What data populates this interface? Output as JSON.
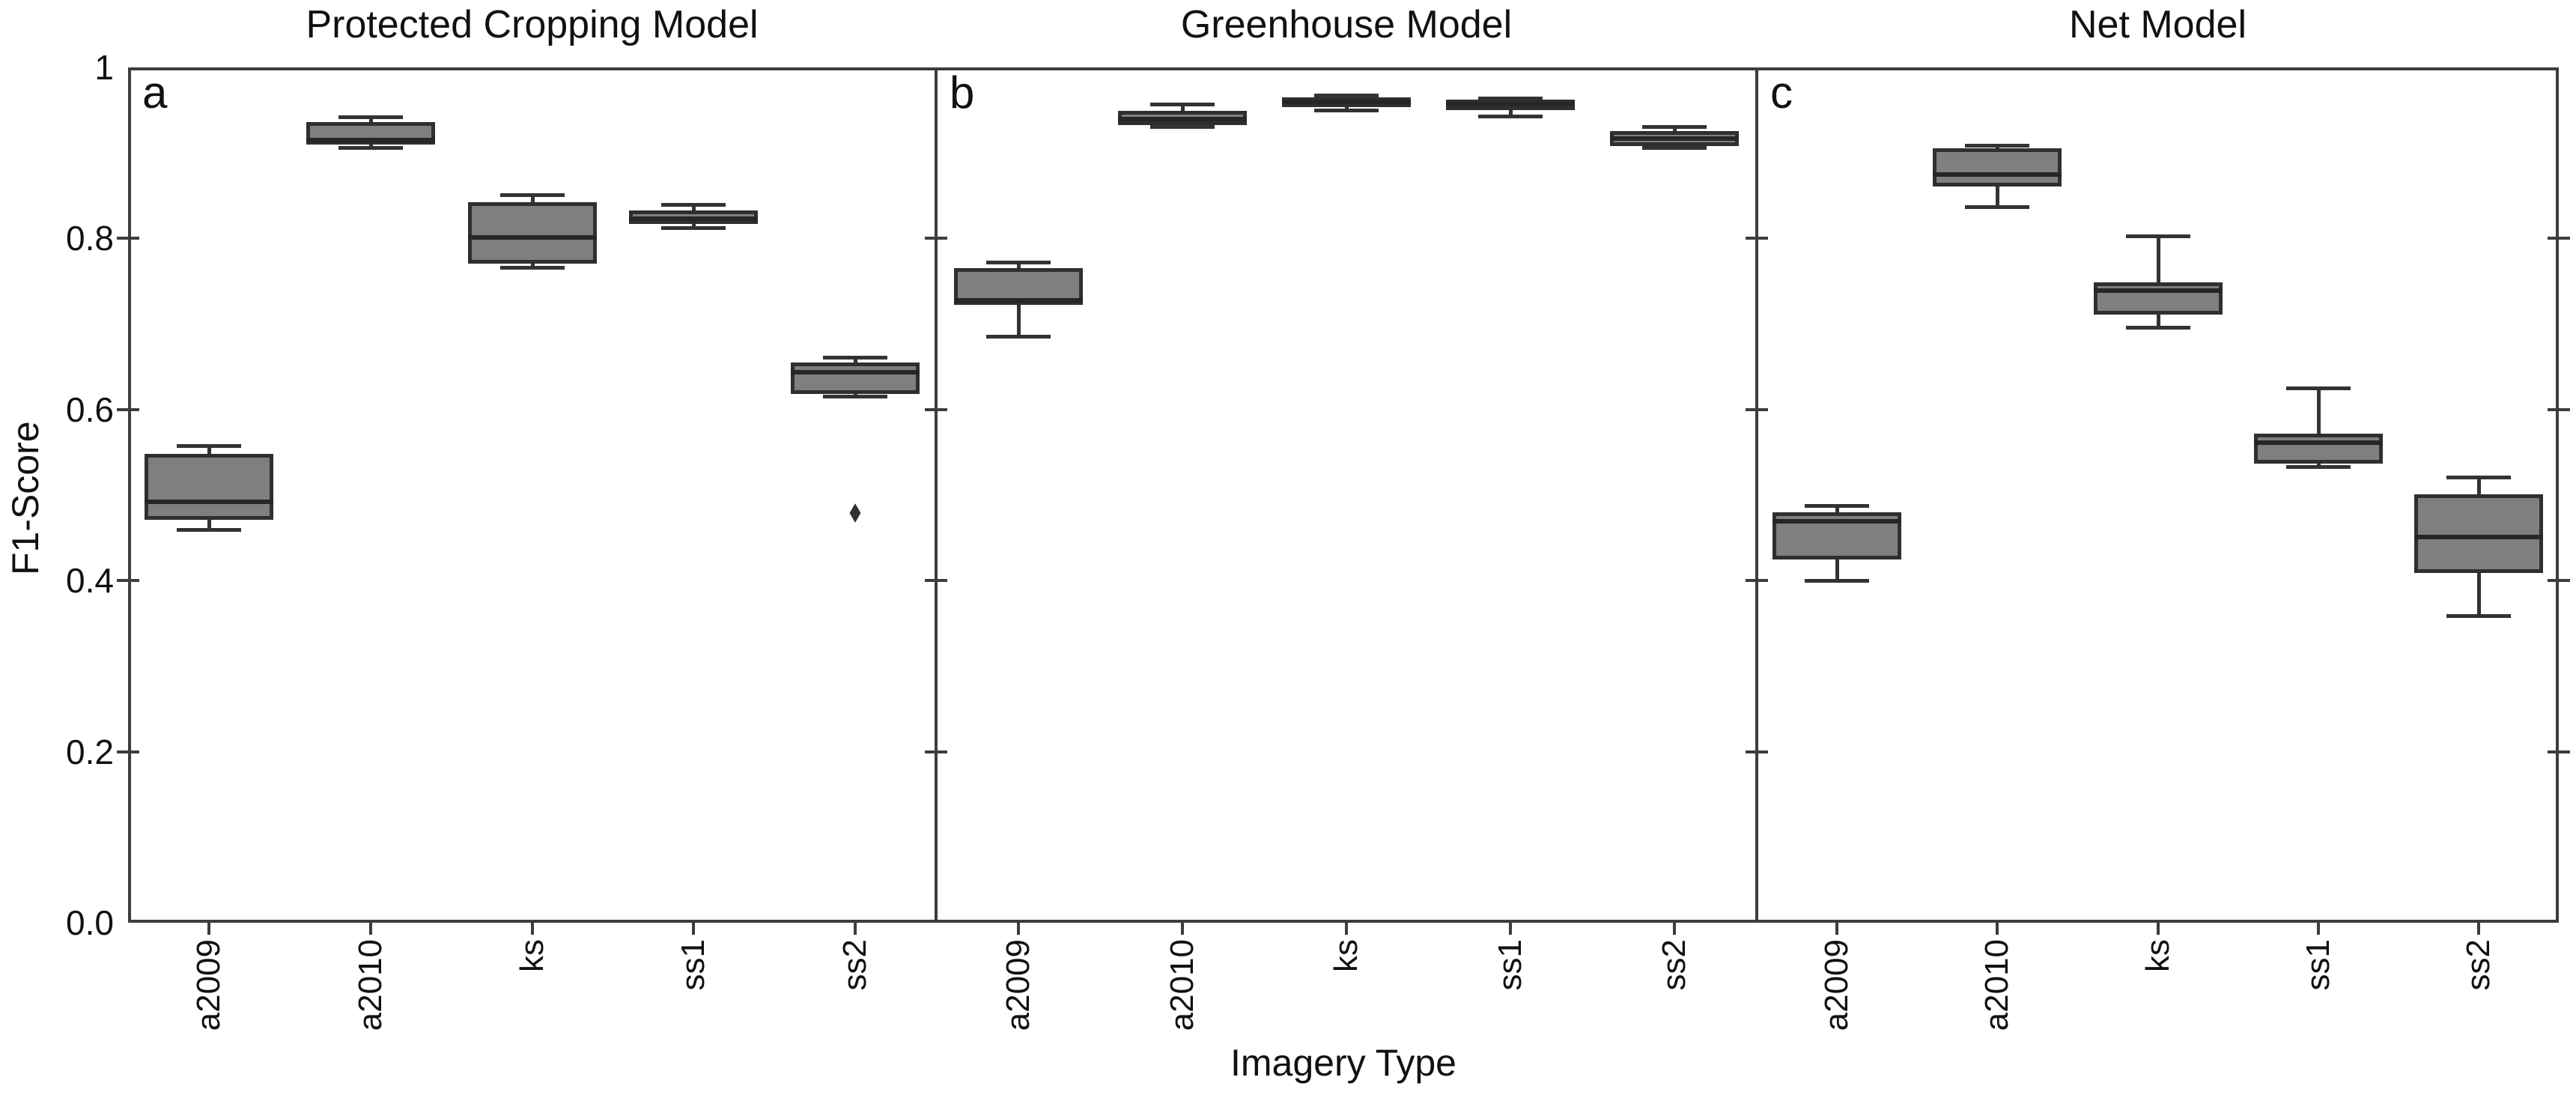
{
  "chart_data": {
    "type": "boxplot",
    "xlabel": "Imagery Type",
    "ylabel": "F1-Score",
    "ylim": [
      0.0,
      1.0
    ],
    "yticks": [
      0.0,
      0.2,
      0.4,
      0.6,
      0.8,
      1.0
    ],
    "ytick_labels": [
      "0.0",
      "0.2",
      "0.4",
      "0.6",
      "0.8",
      "1"
    ],
    "categories": [
      "a2009",
      "a2010",
      "ks",
      "ss1",
      "ss2"
    ],
    "grid": false,
    "legend": false,
    "box_fill_color": "#7f7f7f",
    "box_edge_color": "#2f2f2f",
    "panels": [
      {
        "label": "a",
        "title": "Protected Cropping Model",
        "boxes": [
          {
            "category": "a2009",
            "whislo": 0.46,
            "q1": 0.471,
            "med": 0.492,
            "q3": 0.548,
            "whishi": 0.558,
            "fliers": []
          },
          {
            "category": "a2010",
            "whislo": 0.906,
            "q1": 0.91,
            "med": 0.915,
            "q3": 0.936,
            "whishi": 0.942,
            "fliers": []
          },
          {
            "category": "ks",
            "whislo": 0.766,
            "q1": 0.771,
            "med": 0.801,
            "q3": 0.842,
            "whishi": 0.851,
            "fliers": []
          },
          {
            "category": "ss1",
            "whislo": 0.813,
            "q1": 0.817,
            "med": 0.823,
            "q3": 0.833,
            "whishi": 0.84,
            "fliers": []
          },
          {
            "category": "ss2",
            "whislo": 0.616,
            "q1": 0.618,
            "med": 0.644,
            "q3": 0.655,
            "whishi": 0.661,
            "fliers": [
              0.479
            ]
          }
        ]
      },
      {
        "label": "b",
        "title": "Greenhouse Model",
        "boxes": [
          {
            "category": "a2009",
            "whislo": 0.686,
            "q1": 0.722,
            "med": 0.728,
            "q3": 0.765,
            "whishi": 0.772,
            "fliers": []
          },
          {
            "category": "a2010",
            "whislo": 0.931,
            "q1": 0.933,
            "med": 0.94,
            "q3": 0.949,
            "whishi": 0.957,
            "fliers": []
          },
          {
            "category": "ks",
            "whislo": 0.95,
            "q1": 0.954,
            "med": 0.96,
            "q3": 0.965,
            "whishi": 0.968,
            "fliers": []
          },
          {
            "category": "ss1",
            "whislo": 0.943,
            "q1": 0.95,
            "med": 0.957,
            "q3": 0.962,
            "whishi": 0.964,
            "fliers": []
          },
          {
            "category": "ss2",
            "whislo": 0.906,
            "q1": 0.908,
            "med": 0.917,
            "q3": 0.926,
            "whishi": 0.931,
            "fliers": []
          }
        ]
      },
      {
        "label": "c",
        "title": "Net Model",
        "boxes": [
          {
            "category": "a2009",
            "whislo": 0.4,
            "q1": 0.425,
            "med": 0.469,
            "q3": 0.48,
            "whishi": 0.488,
            "fliers": []
          },
          {
            "category": "a2010",
            "whislo": 0.837,
            "q1": 0.861,
            "med": 0.875,
            "q3": 0.905,
            "whishi": 0.909,
            "fliers": []
          },
          {
            "category": "ks",
            "whislo": 0.696,
            "q1": 0.711,
            "med": 0.739,
            "q3": 0.749,
            "whishi": 0.803,
            "fliers": []
          },
          {
            "category": "ss1",
            "whislo": 0.533,
            "q1": 0.537,
            "med": 0.561,
            "q3": 0.572,
            "whishi": 0.625,
            "fliers": []
          },
          {
            "category": "ss2",
            "whislo": 0.359,
            "q1": 0.409,
            "med": 0.451,
            "q3": 0.501,
            "whishi": 0.521,
            "fliers": []
          }
        ]
      }
    ]
  }
}
